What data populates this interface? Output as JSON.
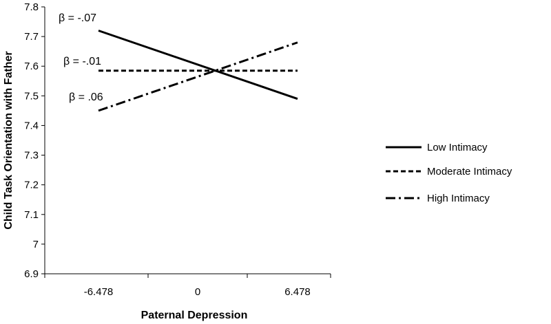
{
  "chart_data": {
    "type": "line",
    "title": "",
    "xlabel": "Paternal Depression",
    "ylabel": "Child Task Orientation with Father",
    "categories": [
      "-6.478",
      "0",
      "6.478"
    ],
    "x": [
      -6.478,
      6.478
    ],
    "ylim": [
      6.9,
      7.8
    ],
    "yticks": [
      "6.9",
      "7",
      "7.1",
      "7.2",
      "7.3",
      "7.4",
      "7.5",
      "7.6",
      "7.7",
      "7.8"
    ],
    "grid": false,
    "legend_position": "right",
    "series": [
      {
        "name": "Low Intimacy",
        "style": "solid",
        "values": [
          7.72,
          7.49
        ]
      },
      {
        "name": "Moderate Intimacy",
        "style": "dashed",
        "values": [
          7.585,
          7.585
        ]
      },
      {
        "name": "High Intimacy",
        "style": "dash-dot",
        "values": [
          7.45,
          7.68
        ]
      }
    ],
    "annotations": [
      {
        "text": "β = -.07",
        "series": "Low Intimacy"
      },
      {
        "text": "β = -.01",
        "series": "Moderate Intimacy"
      },
      {
        "text": "β = .06",
        "series": "High Intimacy"
      }
    ],
    "colors": {
      "line": "#000000",
      "axis": "#000000"
    }
  }
}
